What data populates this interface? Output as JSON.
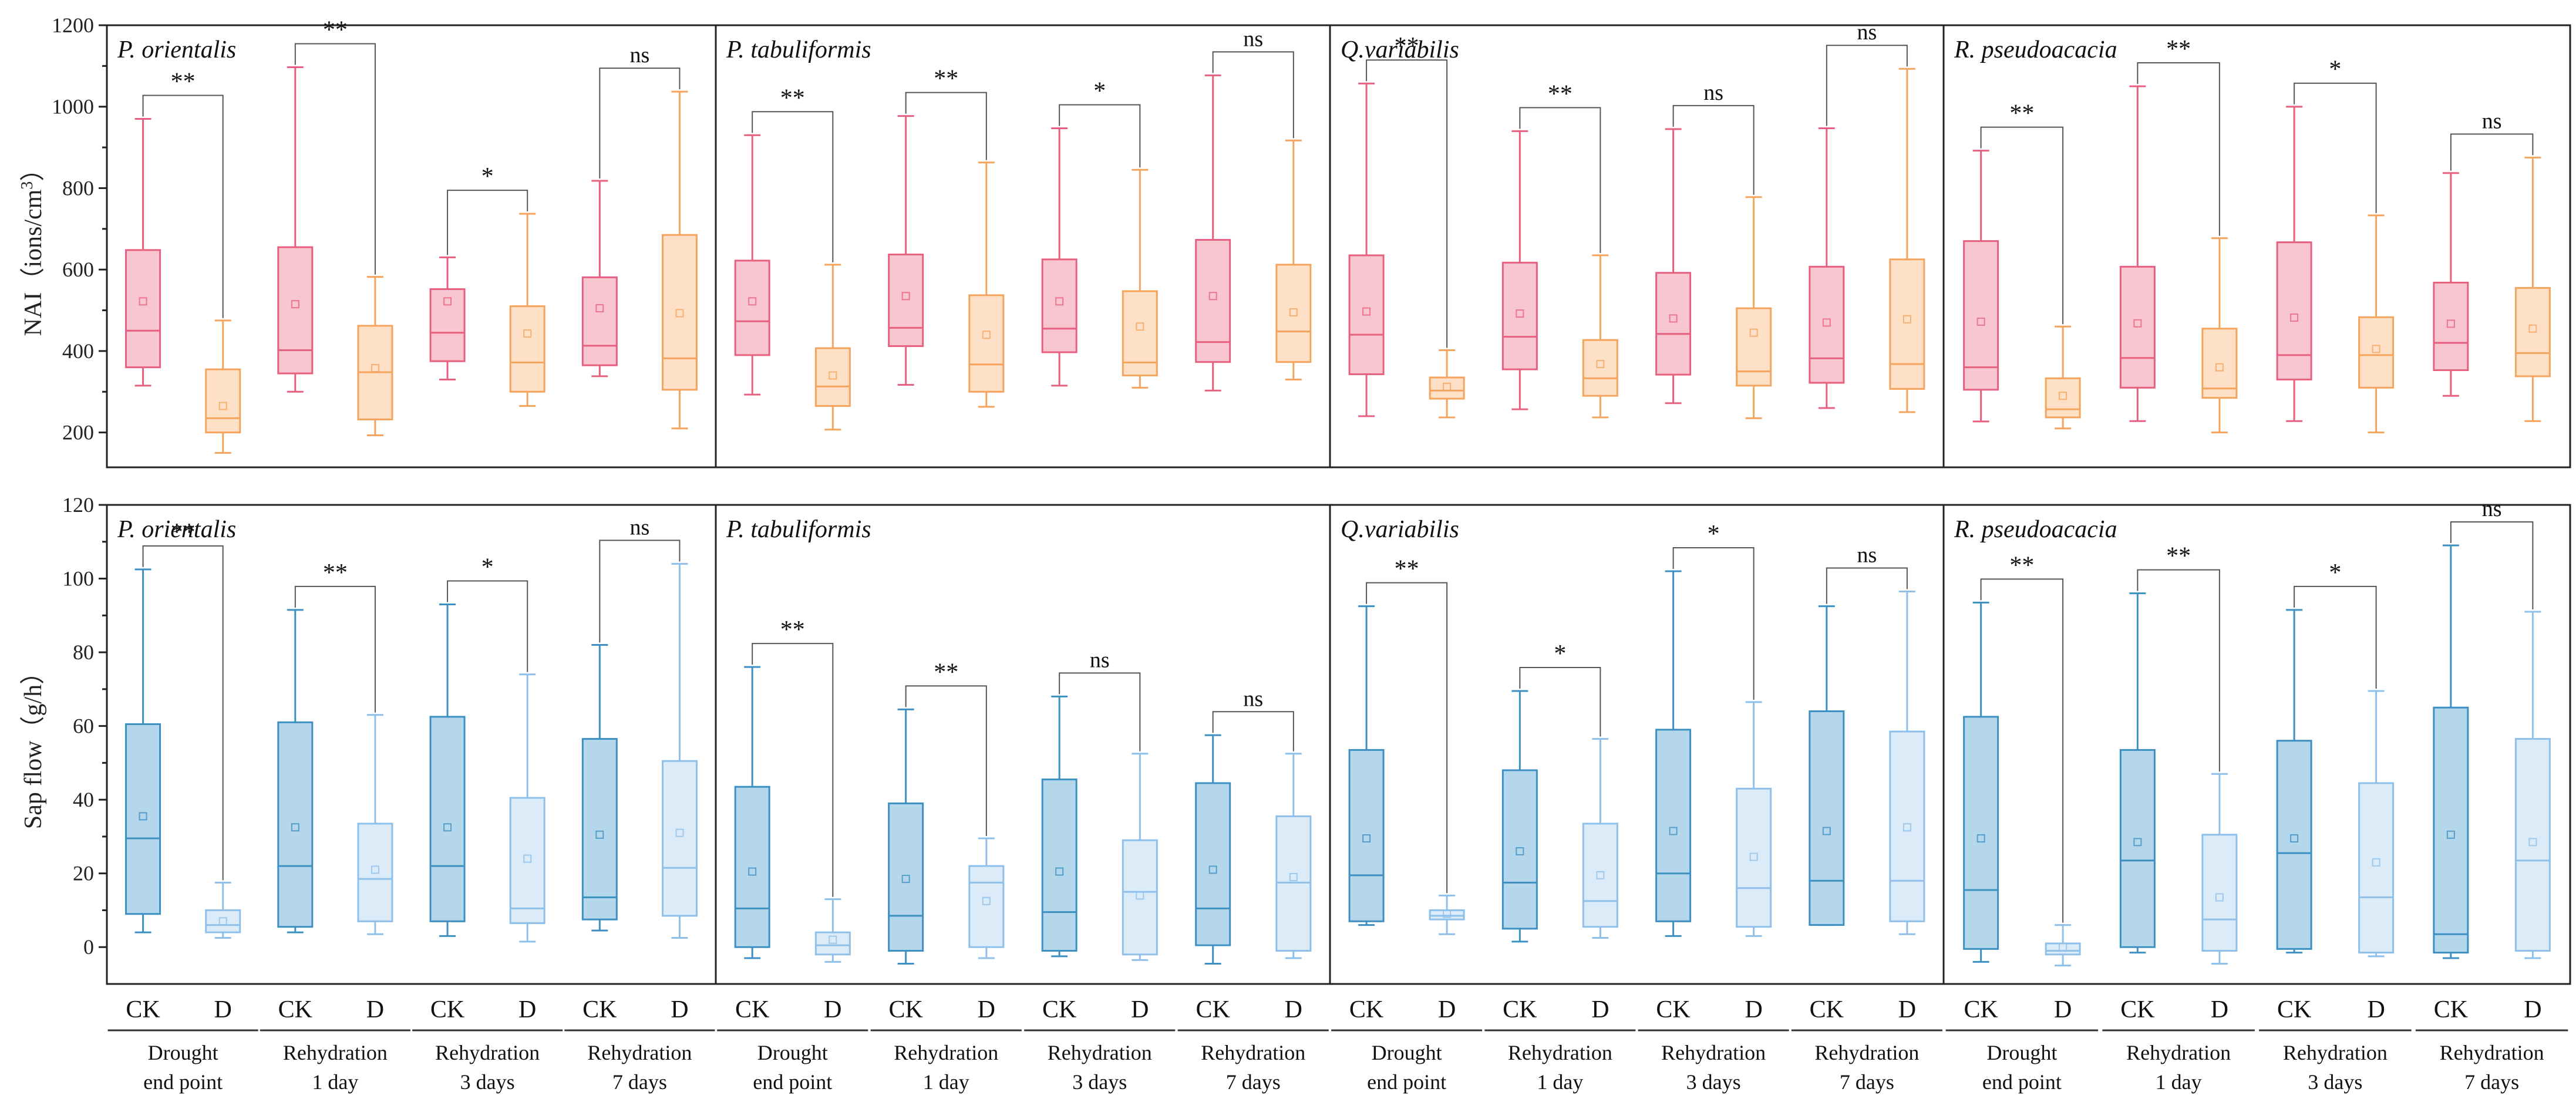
{
  "chart_data": {
    "type": "box",
    "colors": {
      "nai_ck": "#e8607f",
      "nai_ck_fill": "#f8c6d1",
      "nai_d": "#f5a45d",
      "nai_d_fill": "#fde0c6",
      "sap_ck": "#3d90c2",
      "sap_ck_fill": "#b5d7ec",
      "sap_d": "#8fc0ea",
      "sap_d_fill": "#dcebf8"
    },
    "x_ticks": [
      "CK",
      "D"
    ],
    "groups": [
      {
        "line1": "Drought",
        "line2": "end point"
      },
      {
        "line1": "Rehydration",
        "line2": "1 day"
      },
      {
        "line1": "Rehydration",
        "line2": "3 days"
      },
      {
        "line1": "Rehydration",
        "line2": "7 days"
      }
    ],
    "species": [
      "P. orientalis",
      "P. tabuliformis",
      "Q.variabilis",
      "R.  pseudoacacia"
    ],
    "panels": [
      {
        "metric": "NAI",
        "ylabel": "NAI（ions/cm",
        "ylabel_sup": "3",
        "ylabel_end": "）",
        "ylim": [
          100,
          1200
        ],
        "yticks": [
          200,
          400,
          600,
          800,
          1000,
          1200
        ],
        "species": [
          {
            "groups": [
              {
                "sig": "**",
                "ck": {
                  "min": 315,
                  "q1": 360,
                  "median": 450,
                  "q3": 648,
                  "max": 970,
                  "mean": 522
                },
                "d": {
                  "min": 150,
                  "q1": 200,
                  "median": 235,
                  "q3": 355,
                  "max": 475,
                  "mean": 265
                }
              },
              {
                "sig": "**",
                "ck": {
                  "min": 300,
                  "q1": 345,
                  "median": 402,
                  "q3": 655,
                  "max": 1097,
                  "mean": 515
                },
                "d": {
                  "min": 193,
                  "q1": 232,
                  "median": 348,
                  "q3": 462,
                  "max": 582,
                  "mean": 358
                }
              },
              {
                "sig": "*",
                "ck": {
                  "min": 330,
                  "q1": 375,
                  "median": 445,
                  "q3": 552,
                  "max": 630,
                  "mean": 522
                },
                "d": {
                  "min": 265,
                  "q1": 300,
                  "median": 372,
                  "q3": 510,
                  "max": 737,
                  "mean": 443
                }
              },
              {
                "sig": "ns",
                "ck": {
                  "min": 338,
                  "q1": 365,
                  "median": 413,
                  "q3": 581,
                  "max": 818,
                  "mean": 505
                },
                "d": {
                  "min": 210,
                  "q1": 305,
                  "median": 382,
                  "q3": 685,
                  "max": 1037,
                  "mean": 493
                }
              }
            ]
          },
          {
            "groups": [
              {
                "sig": "**",
                "ck": {
                  "min": 293,
                  "q1": 390,
                  "median": 473,
                  "q3": 622,
                  "max": 930,
                  "mean": 522
                },
                "d": {
                  "min": 207,
                  "q1": 265,
                  "median": 313,
                  "q3": 407,
                  "max": 612,
                  "mean": 340
                }
              },
              {
                "sig": "**",
                "ck": {
                  "min": 317,
                  "q1": 412,
                  "median": 457,
                  "q3": 637,
                  "max": 977,
                  "mean": 535
                },
                "d": {
                  "min": 263,
                  "q1": 300,
                  "median": 367,
                  "q3": 537,
                  "max": 863,
                  "mean": 440
                }
              },
              {
                "sig": "*",
                "ck": {
                  "min": 315,
                  "q1": 397,
                  "median": 455,
                  "q3": 625,
                  "max": 947,
                  "mean": 522
                },
                "d": {
                  "min": 310,
                  "q1": 340,
                  "median": 372,
                  "q3": 547,
                  "max": 845,
                  "mean": 460
                }
              },
              {
                "sig": "ns",
                "ck": {
                  "min": 303,
                  "q1": 373,
                  "median": 422,
                  "q3": 673,
                  "max": 1077,
                  "mean": 535
                },
                "d": {
                  "min": 330,
                  "q1": 373,
                  "median": 448,
                  "q3": 612,
                  "max": 917,
                  "mean": 495
                }
              }
            ]
          },
          {
            "groups": [
              {
                "sig": "**",
                "ck": {
                  "min": 240,
                  "q1": 343,
                  "median": 440,
                  "q3": 635,
                  "max": 1057,
                  "mean": 497
                },
                "d": {
                  "min": 237,
                  "q1": 283,
                  "median": 303,
                  "q3": 335,
                  "max": 402,
                  "mean": 312
                }
              },
              {
                "sig": "**",
                "ck": {
                  "min": 257,
                  "q1": 355,
                  "median": 435,
                  "q3": 617,
                  "max": 940,
                  "mean": 492
                },
                "d": {
                  "min": 237,
                  "q1": 290,
                  "median": 333,
                  "q3": 427,
                  "max": 635,
                  "mean": 368
                }
              },
              {
                "sig": "ns",
                "ck": {
                  "min": 272,
                  "q1": 342,
                  "median": 442,
                  "q3": 592,
                  "max": 945,
                  "mean": 480
                },
                "d": {
                  "min": 235,
                  "q1": 315,
                  "median": 350,
                  "q3": 505,
                  "max": 778,
                  "mean": 445
                }
              },
              {
                "sig": "ns",
                "ck": {
                  "min": 260,
                  "q1": 322,
                  "median": 382,
                  "q3": 607,
                  "max": 947,
                  "mean": 470
                },
                "d": {
                  "min": 250,
                  "q1": 307,
                  "median": 368,
                  "q3": 625,
                  "max": 1093,
                  "mean": 478
                }
              }
            ]
          },
          {
            "groups": [
              {
                "sig": "**",
                "ck": {
                  "min": 227,
                  "q1": 305,
                  "median": 360,
                  "q3": 670,
                  "max": 892,
                  "mean": 472
                },
                "d": {
                  "min": 210,
                  "q1": 237,
                  "median": 257,
                  "q3": 333,
                  "max": 460,
                  "mean": 290
                }
              },
              {
                "sig": "**",
                "ck": {
                  "min": 228,
                  "q1": 310,
                  "median": 383,
                  "q3": 607,
                  "max": 1050,
                  "mean": 468
                },
                "d": {
                  "min": 200,
                  "q1": 285,
                  "median": 308,
                  "q3": 455,
                  "max": 677,
                  "mean": 360
                }
              },
              {
                "sig": "*",
                "ck": {
                  "min": 228,
                  "q1": 330,
                  "median": 390,
                  "q3": 667,
                  "max": 1000,
                  "mean": 482
                },
                "d": {
                  "min": 200,
                  "q1": 310,
                  "median": 390,
                  "q3": 483,
                  "max": 733,
                  "mean": 405
                }
              },
              {
                "sig": "ns",
                "ck": {
                  "min": 290,
                  "q1": 353,
                  "median": 420,
                  "q3": 568,
                  "max": 837,
                  "mean": 467
                },
                "d": {
                  "min": 228,
                  "q1": 338,
                  "median": 395,
                  "q3": 555,
                  "max": 875,
                  "mean": 455
                }
              }
            ]
          }
        ]
      },
      {
        "metric": "Sap flow",
        "ylabel": "Sap flow（g/h）",
        "ylabel_sup": "",
        "ylabel_end": "",
        "ylim": [
          -10,
          120
        ],
        "yticks": [
          0,
          20,
          40,
          60,
          80,
          100,
          120
        ],
        "species": [
          {
            "groups": [
              {
                "sig": "**",
                "ck": {
                  "min": 4,
                  "q1": 9,
                  "median": 29.5,
                  "q3": 60.5,
                  "max": 102.5,
                  "mean": 35.5
                },
                "d": {
                  "min": 2.5,
                  "q1": 4,
                  "median": 6,
                  "q3": 10,
                  "max": 17.5,
                  "mean": 7
                }
              },
              {
                "sig": "**",
                "ck": {
                  "min": 4,
                  "q1": 5.5,
                  "median": 22,
                  "q3": 61,
                  "max": 91.5,
                  "mean": 32.5
                },
                "d": {
                  "min": 3.5,
                  "q1": 7,
                  "median": 18.5,
                  "q3": 33.5,
                  "max": 63,
                  "mean": 21
                }
              },
              {
                "sig": "*",
                "ck": {
                  "min": 3,
                  "q1": 7,
                  "median": 22,
                  "q3": 62.5,
                  "max": 93,
                  "mean": 32.5
                },
                "d": {
                  "min": 1.5,
                  "q1": 6.5,
                  "median": 10.5,
                  "q3": 40.5,
                  "max": 74,
                  "mean": 24
                }
              },
              {
                "sig": "ns",
                "ck": {
                  "min": 4.5,
                  "q1": 7.5,
                  "median": 13.5,
                  "q3": 56.5,
                  "max": 82,
                  "mean": 30.5
                },
                "d": {
                  "min": 2.5,
                  "q1": 8.5,
                  "median": 21.5,
                  "q3": 50.5,
                  "max": 104,
                  "mean": 31
                }
              }
            ]
          },
          {
            "groups": [
              {
                "sig": "**",
                "ck": {
                  "min": -3,
                  "q1": 0,
                  "median": 10.5,
                  "q3": 43.5,
                  "max": 76,
                  "mean": 20.5
                },
                "d": {
                  "min": -4,
                  "q1": -2,
                  "median": 0.5,
                  "q3": 4,
                  "max": 13,
                  "mean": 2
                }
              },
              {
                "sig": "**",
                "ck": {
                  "min": -4.5,
                  "q1": -1,
                  "median": 8.5,
                  "q3": 39,
                  "max": 64.5,
                  "mean": 18.5
                },
                "d": {
                  "min": -3,
                  "q1": 0,
                  "median": 17.5,
                  "q3": 22,
                  "max": 29.5,
                  "mean": 12.5
                }
              },
              {
                "sig": "ns",
                "ck": {
                  "min": -2.5,
                  "q1": -1,
                  "median": 9.5,
                  "q3": 45.5,
                  "max": 68,
                  "mean": 20.5
                },
                "d": {
                  "min": -3.5,
                  "q1": -2,
                  "median": 15,
                  "q3": 29,
                  "max": 52.5,
                  "mean": 14
                }
              },
              {
                "sig": "ns",
                "ck": {
                  "min": -4.5,
                  "q1": 0.5,
                  "median": 10.5,
                  "q3": 44.5,
                  "max": 57.5,
                  "mean": 21
                },
                "d": {
                  "min": -3,
                  "q1": -1,
                  "median": 17.5,
                  "q3": 35.5,
                  "max": 52.5,
                  "mean": 19
                }
              }
            ]
          },
          {
            "groups": [
              {
                "sig": "**",
                "ck": {
                  "min": 6,
                  "q1": 7,
                  "median": 19.5,
                  "q3": 53.5,
                  "max": 92.5,
                  "mean": 29.5
                },
                "d": {
                  "min": 3.5,
                  "q1": 7.5,
                  "median": 8.5,
                  "q3": 10,
                  "max": 14,
                  "mean": 9
                }
              },
              {
                "sig": "*",
                "ck": {
                  "min": 1.5,
                  "q1": 5,
                  "median": 17.5,
                  "q3": 48,
                  "max": 69.5,
                  "mean": 26
                },
                "d": {
                  "min": 2.5,
                  "q1": 5.5,
                  "median": 12.5,
                  "q3": 33.5,
                  "max": 56.5,
                  "mean": 19.5
                }
              },
              {
                "sig": "*",
                "ck": {
                  "min": 3,
                  "q1": 7,
                  "median": 20,
                  "q3": 59,
                  "max": 102,
                  "mean": 31.5
                },
                "d": {
                  "min": 3,
                  "q1": 5.5,
                  "median": 16,
                  "q3": 43,
                  "max": 66.5,
                  "mean": 24.5
                }
              },
              {
                "sig": "ns",
                "ck": {
                  "min": 6,
                  "q1": 6,
                  "median": 18,
                  "q3": 64,
                  "max": 92.5,
                  "mean": 31.5
                },
                "d": {
                  "min": 3.5,
                  "q1": 7,
                  "median": 18,
                  "q3": 58.5,
                  "max": 96.5,
                  "mean": 32.5
                }
              }
            ]
          },
          {
            "groups": [
              {
                "sig": "**",
                "ck": {
                  "min": -4,
                  "q1": -0.5,
                  "median": 15.5,
                  "q3": 62.5,
                  "max": 93.5,
                  "mean": 29.5
                },
                "d": {
                  "min": -5,
                  "q1": -2,
                  "median": -1,
                  "q3": 1,
                  "max": 6,
                  "mean": 0
                }
              },
              {
                "sig": "**",
                "ck": {
                  "min": -1.5,
                  "q1": 0,
                  "median": 23.5,
                  "q3": 53.5,
                  "max": 96,
                  "mean": 28.5
                },
                "d": {
                  "min": -4.5,
                  "q1": -1,
                  "median": 7.5,
                  "q3": 30.5,
                  "max": 47,
                  "mean": 13.5
                }
              },
              {
                "sig": "*",
                "ck": {
                  "min": -1.5,
                  "q1": -0.5,
                  "median": 25.5,
                  "q3": 56,
                  "max": 91.5,
                  "mean": 29.5
                },
                "d": {
                  "min": -2.5,
                  "q1": -1.5,
                  "median": 13.5,
                  "q3": 44.5,
                  "max": 69.5,
                  "mean": 23
                }
              },
              {
                "sig": "ns",
                "ck": {
                  "min": -3,
                  "q1": -1.5,
                  "median": 3.5,
                  "q3": 65,
                  "max": 109,
                  "mean": 30.5
                },
                "d": {
                  "min": -3,
                  "q1": -1,
                  "median": 23.5,
                  "q3": 56.5,
                  "max": 91,
                  "mean": 28.5
                }
              }
            ]
          }
        ]
      }
    ]
  }
}
